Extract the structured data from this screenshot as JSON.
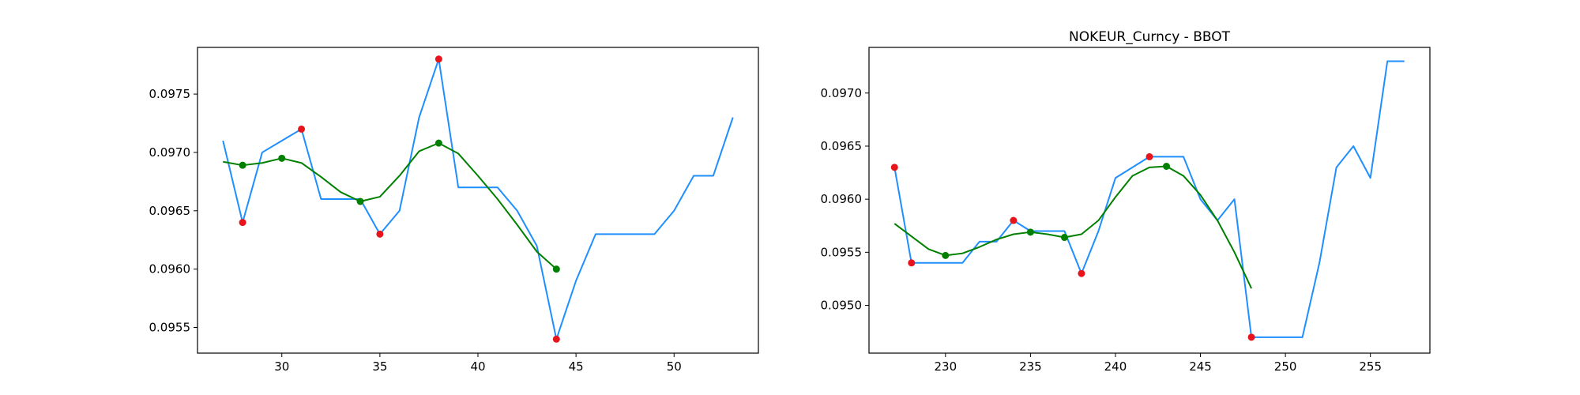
{
  "chart_data": [
    {
      "type": "line",
      "title": "",
      "xlabel": "",
      "ylabel": "",
      "xlim": [
        25.7,
        54.3
      ],
      "ylim": [
        0.09528,
        0.0979
      ],
      "xticks": [
        30,
        35,
        40,
        45,
        50
      ],
      "yticks": [
        0.0955,
        0.096,
        0.0965,
        0.097,
        0.0975
      ],
      "xtick_labels": [
        "30",
        "35",
        "40",
        "45",
        "50"
      ],
      "ytick_labels": [
        "0.0955",
        "0.0960",
        "0.0965",
        "0.0970",
        "0.0975"
      ],
      "grid": false,
      "series": [
        {
          "kind": "line",
          "color": "#1f8fff",
          "x": [
            27,
            28,
            29,
            30,
            31,
            32,
            33,
            34,
            35,
            36,
            37,
            38,
            39,
            40,
            41,
            42,
            43,
            44,
            45,
            46,
            47,
            48,
            49,
            50,
            51,
            52,
            53
          ],
          "y": [
            0.0971,
            0.0964,
            0.097,
            0.0971,
            0.0972,
            0.0966,
            0.0966,
            0.0966,
            0.0963,
            0.0965,
            0.0973,
            0.0978,
            0.0967,
            0.0967,
            0.0967,
            0.0965,
            0.0962,
            0.0954,
            0.0959,
            0.0963,
            0.0963,
            0.0963,
            0.0963,
            0.0965,
            0.0968,
            0.0968,
            0.0973
          ]
        },
        {
          "kind": "line",
          "color": "#008000",
          "x": [
            27,
            28,
            29,
            30,
            31,
            32,
            33,
            34,
            35,
            36,
            37,
            38,
            39,
            40,
            41,
            42,
            43,
            44
          ],
          "y": [
            0.09692,
            0.09689,
            0.09691,
            0.09695,
            0.09691,
            0.09679,
            0.09666,
            0.09658,
            0.09662,
            0.0968,
            0.09701,
            0.09708,
            0.09699,
            0.0968,
            0.0966,
            0.09638,
            0.09615,
            0.096
          ]
        },
        {
          "kind": "scatter",
          "color": "#e8141c",
          "x": [
            28,
            31,
            35,
            38,
            44
          ],
          "y": [
            0.0964,
            0.0972,
            0.0963,
            0.0978,
            0.0954
          ]
        },
        {
          "kind": "scatter",
          "color": "#008000",
          "x": [
            28,
            30,
            34,
            38,
            44
          ],
          "y": [
            0.09689,
            0.09695,
            0.09658,
            0.09708,
            0.096
          ]
        }
      ]
    },
    {
      "type": "line",
      "title": "NOKEUR_Curncy - BBOT",
      "xlabel": "",
      "ylabel": "",
      "xlim": [
        225.5,
        258.5
      ],
      "ylim": [
        0.09455,
        0.09743
      ],
      "xticks": [
        230,
        235,
        240,
        245,
        250,
        255
      ],
      "yticks": [
        0.095,
        0.0955,
        0.096,
        0.0965,
        0.097
      ],
      "xtick_labels": [
        "230",
        "235",
        "240",
        "245",
        "250",
        "255"
      ],
      "ytick_labels": [
        "0.0950",
        "0.0955",
        "0.0960",
        "0.0965",
        "0.0970"
      ],
      "grid": false,
      "series": [
        {
          "kind": "line",
          "color": "#1f8fff",
          "x": [
            227,
            228,
            229,
            230,
            231,
            232,
            233,
            234,
            235,
            236,
            237,
            238,
            239,
            240,
            241,
            242,
            243,
            244,
            245,
            246,
            247,
            248,
            249,
            250,
            251,
            252,
            253,
            254,
            255,
            256,
            257
          ],
          "y": [
            0.0963,
            0.0954,
            0.0954,
            0.0954,
            0.0954,
            0.0956,
            0.0956,
            0.0958,
            0.0957,
            0.0957,
            0.0957,
            0.0953,
            0.0957,
            0.0962,
            0.0963,
            0.0964,
            0.0964,
            0.0964,
            0.096,
            0.0958,
            0.096,
            0.0947,
            0.0947,
            0.0947,
            0.0947,
            0.0954,
            0.0963,
            0.0965,
            0.0962,
            0.0973,
            0.0973
          ]
        },
        {
          "kind": "line",
          "color": "#008000",
          "x": [
            227,
            228,
            229,
            230,
            231,
            232,
            233,
            234,
            235,
            236,
            237,
            238,
            239,
            240,
            241,
            242,
            243,
            244,
            245,
            246,
            247,
            248
          ],
          "y": [
            0.09577,
            0.09565,
            0.09553,
            0.09547,
            0.09549,
            0.09555,
            0.09562,
            0.09567,
            0.09569,
            0.09567,
            0.09564,
            0.09567,
            0.0958,
            0.09602,
            0.09622,
            0.0963,
            0.09631,
            0.09622,
            0.09604,
            0.0958,
            0.0955,
            0.09516
          ]
        },
        {
          "kind": "scatter",
          "color": "#e8141c",
          "x": [
            227,
            228,
            234,
            238,
            242,
            248
          ],
          "y": [
            0.0963,
            0.0954,
            0.0958,
            0.0953,
            0.0964,
            0.0947
          ]
        },
        {
          "kind": "scatter",
          "color": "#008000",
          "x": [
            230,
            235,
            237,
            243
          ],
          "y": [
            0.09547,
            0.09569,
            0.09564,
            0.09631
          ]
        }
      ]
    }
  ]
}
